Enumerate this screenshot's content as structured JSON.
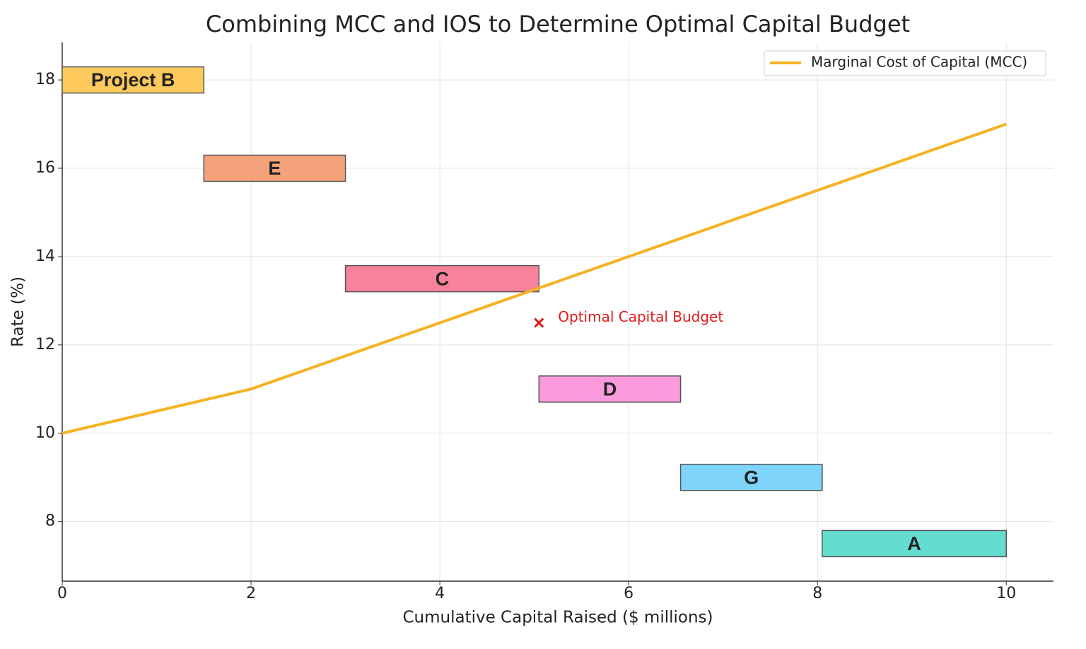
{
  "chart_data": {
    "type": "line",
    "title": "Combining MCC and IOS to Determine Optimal Capital Budget",
    "x_label": "Cumulative Capital Raised ($ millions)",
    "y_label": "Rate (%)",
    "x": [
      0,
      2,
      4,
      6,
      8,
      10
    ],
    "series": [
      {
        "name": "Marginal Cost of Capital (MCC)",
        "color": "#f5b222",
        "values": [
          10,
          11,
          12.5,
          14,
          15.5,
          17
        ]
      }
    ],
    "xlim": [
      0,
      10.5
    ],
    "ylim": [
      6.65,
      18.85
    ],
    "xticks": [
      0,
      2,
      4,
      6,
      8,
      10
    ],
    "yticks": [
      8,
      10,
      12,
      14,
      16,
      18
    ],
    "grid": true,
    "legend": "upper right",
    "bars": [
      {
        "label": "Project B",
        "x_start": 0,
        "x_end": 1.5,
        "rate": 18,
        "color": "#fdc95c"
      },
      {
        "label": "E",
        "x_start": 1.5,
        "x_end": 3,
        "rate": 16,
        "color": "#f5a27a"
      },
      {
        "label": "C",
        "x_start": 3,
        "x_end": 5.05,
        "rate": 13.5,
        "color": "#f7829a"
      },
      {
        "label": "D",
        "x_start": 5.05,
        "x_end": 6.55,
        "rate": 11,
        "color": "#f99bdc"
      },
      {
        "label": "G",
        "x_start": 6.55,
        "x_end": 8.05,
        "rate": 9,
        "color": "#7fd4fb"
      },
      {
        "label": "A",
        "x_start": 8.05,
        "x_end": 10,
        "rate": 7.5,
        "color": "#64dccf"
      }
    ],
    "annotation": {
      "text": "Optimal Capital Budget",
      "x": 5.05,
      "y": 12.5,
      "color": "#e01b1b"
    }
  }
}
